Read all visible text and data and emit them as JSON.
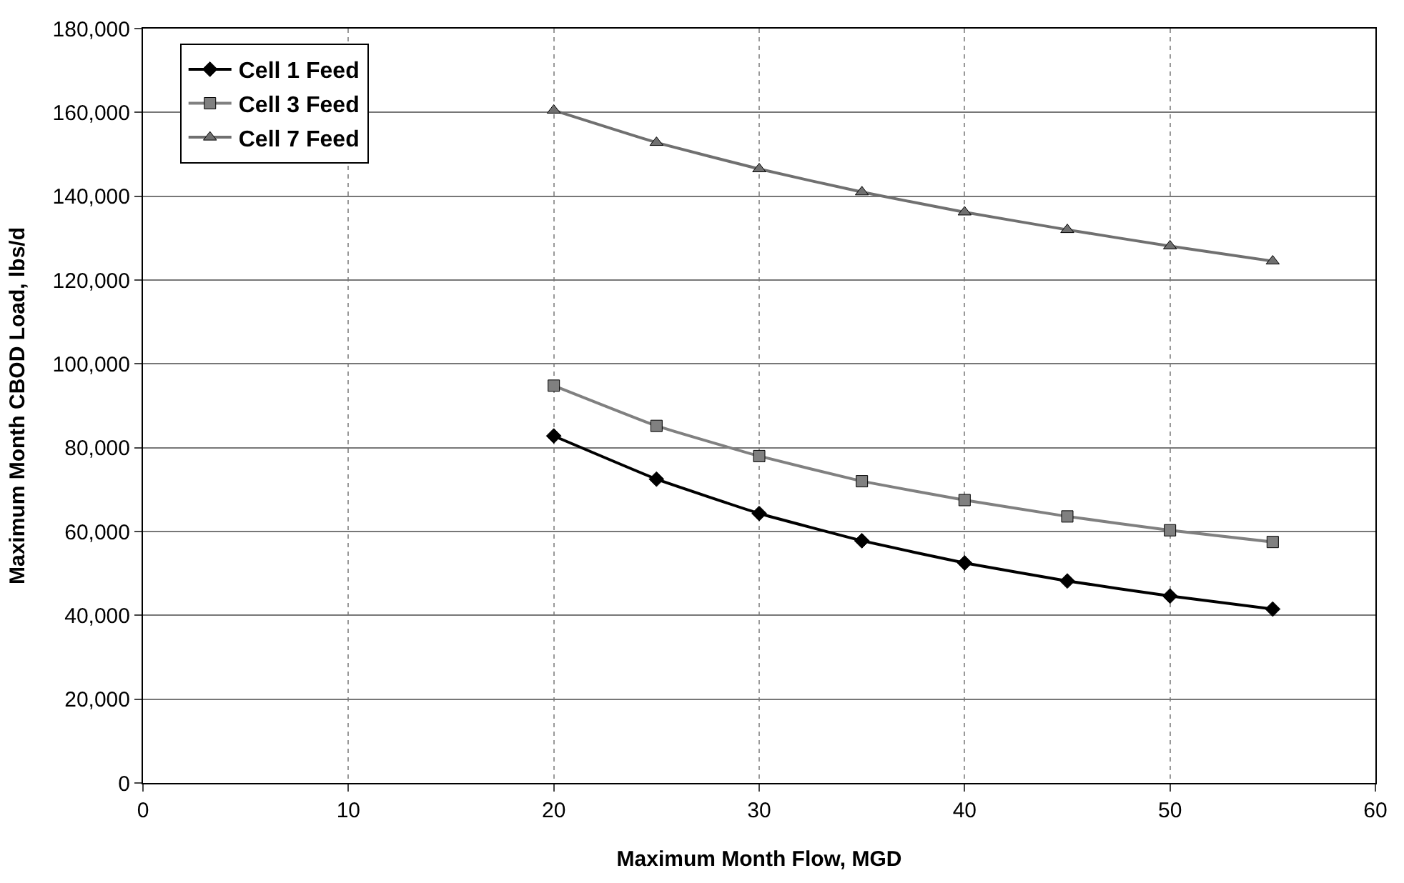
{
  "chart_data": {
    "type": "line",
    "xlabel": "Maximum Month Flow, MGD",
    "ylabel": "Maximum Month CBOD Load, lbs/d",
    "x": [
      20,
      25,
      30,
      35,
      40,
      45,
      50,
      55
    ],
    "series": [
      {
        "name": "Cell 1 Feed",
        "color": "#000000",
        "marker": "diamond",
        "values": [
          82800,
          72500,
          64300,
          57800,
          52500,
          48200,
          44600,
          41500
        ]
      },
      {
        "name": "Cell 3 Feed",
        "color": "#808080",
        "marker": "square",
        "values": [
          94800,
          85200,
          78000,
          72000,
          67500,
          63600,
          60300,
          57500
        ]
      },
      {
        "name": "Cell 7 Feed",
        "color": "#707070",
        "marker": "triangle",
        "values": [
          160500,
          152800,
          146500,
          141000,
          136200,
          132000,
          128100,
          124500
        ]
      }
    ],
    "xlim": [
      0,
      60
    ],
    "xticks": [
      0,
      10,
      20,
      30,
      40,
      50,
      60
    ],
    "ylim": [
      0,
      180000
    ],
    "yticks": [
      {
        "value": 0,
        "label": "0"
      },
      {
        "value": 20000,
        "label": "20,000"
      },
      {
        "value": 40000,
        "label": "40,000"
      },
      {
        "value": 60000,
        "label": "60,000"
      },
      {
        "value": 80000,
        "label": "80,000"
      },
      {
        "value": 100000,
        "label": "100,000"
      },
      {
        "value": 120000,
        "label": "120,000"
      },
      {
        "value": 140000,
        "label": "140,000"
      },
      {
        "value": 160000,
        "label": "160,000"
      },
      {
        "value": 180000,
        "label": "180,000"
      }
    ],
    "grid": true,
    "legend": "top left",
    "line_style": "solid"
  }
}
